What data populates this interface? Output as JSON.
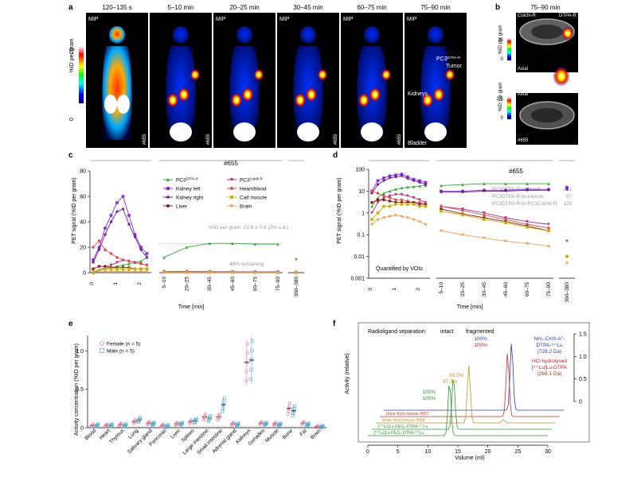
{
  "panels": {
    "a": {
      "letter": "a",
      "frames": [
        {
          "time": "120–135 s",
          "tag": "MIP",
          "id": "#655"
        },
        {
          "time": "5–10 min",
          "tag": "",
          "id": "#655"
        },
        {
          "time": "20–25 min",
          "tag": "MIP",
          "id": ""
        },
        {
          "time": "30–45 min",
          "tag": "MIP",
          "id": "#655"
        },
        {
          "time": "60–75 min",
          "tag": "MIP",
          "id": "#655"
        },
        {
          "time": "75–90 min",
          "tag": "MIP",
          "id": ""
        }
      ],
      "scale_label": "%ID per gram",
      "scale_max": "25",
      "scale_min": "0",
      "labels": {
        "tumor_line1": "PC3",
        "tumor_sup": "DTPA-R",
        "tumor_line2": "Tumor",
        "kidneys": "Kidneys",
        "bladder": "Bladder"
      }
    },
    "b": {
      "letter": "b",
      "time": "75–90 min",
      "left_label": "Colchi-R",
      "right_label": "DTPA-R",
      "scale_top": {
        "label": "%ID per gram",
        "max": "25",
        "min": "0"
      },
      "scale_bottom": {
        "label": "%ID per gram",
        "max": "2.5",
        "min": "0"
      },
      "axial": "Axial",
      "id": "#655"
    },
    "c": {
      "letter": "c",
      "id": "#655",
      "ylabel": "PET signal (%ID per gram)",
      "xlabel": "Time [min]",
      "annotation": "%ID per gram: 22.8 ± 0.6 (2% s.d.)",
      "remaining": "48% remaining",
      "yticks": [
        "0",
        "20",
        "40",
        "60",
        "80"
      ],
      "x_early_ticks": [
        "0",
        "1",
        "2"
      ],
      "x_late_ticks": [
        "5–10",
        "20–25",
        "30–45",
        "45–60",
        "60–75",
        "75–90"
      ],
      "x_end_tick": "360–380",
      "legend": [
        {
          "name": "PC3",
          "sup": "DTPA-R",
          "color": "#2eaa2e",
          "marker": "triangle"
        },
        {
          "name": "PC3",
          "sup": "Colchi-R",
          "color": "#b03080",
          "marker": "tri-down"
        },
        {
          "name": "Kidney left",
          "sup": "",
          "color": "#8a2be2",
          "marker": "square"
        },
        {
          "name": "Heart/blood",
          "sup": "",
          "color": "#e05050",
          "marker": "circle"
        },
        {
          "name": "Kidney right",
          "sup": "",
          "color": "#6a1b9a",
          "marker": "star"
        },
        {
          "name": "Calf muscle",
          "sup": "",
          "color": "#c8b400",
          "marker": "square"
        },
        {
          "name": "Liver",
          "sup": "",
          "color": "#8b1a1a",
          "marker": "circle"
        },
        {
          "name": "Brain",
          "sup": "",
          "color": "#f0a050",
          "marker": "star"
        }
      ]
    },
    "d": {
      "letter": "d",
      "id": "#655",
      "ylabel": "PET signal (%ID per gram)",
      "xlabel": "Time [min]",
      "note": "Quantified by VOIs",
      "ratios": [
        {
          "text": "PC3DTPA-R-to-blood:",
          "value": "261"
        },
        {
          "text": "PC3DTPA-R-to-muscle:",
          "value": "97"
        },
        {
          "text": "PC3DTPA-R-to-PC3Colchi-R:",
          "value": "125"
        }
      ],
      "yticks": [
        "0.001",
        "0.01",
        "0.1",
        "1",
        "10",
        "100"
      ],
      "x_early_ticks": [
        "0",
        "1",
        "2"
      ],
      "x_late_ticks": [
        "5–10",
        "20–25",
        "30–45",
        "45–60",
        "60–75",
        "75–90"
      ],
      "x_end_tick": "360–380"
    },
    "e": {
      "letter": "e",
      "ylabel": "Activity concentration (%ID per gram)",
      "yticks": [
        "0",
        "0.5",
        "1.0"
      ],
      "legend": [
        {
          "label": "Female (n = 5)",
          "color": "#e080a0",
          "marker": "circle"
        },
        {
          "label": "Male (n = 5)",
          "color": "#60b0d0",
          "marker": "square"
        }
      ],
      "categories": [
        "Blood",
        "Heart",
        "Thymus",
        "Lung",
        "Salivary gland",
        "Pancreas",
        "Liver",
        "Spleen",
        "Large intestine",
        "Small intestine",
        "Adrenal gland",
        "Kidneys",
        "Gonades",
        "Muscle",
        "Bone",
        "Fat",
        "Brain"
      ]
    },
    "f": {
      "letter": "f",
      "title": "Radioligand separation:",
      "intact": "intact",
      "fragmented": "fragmented",
      "ylabel": "Activity (relative)",
      "xlabel": "Volume (ml)",
      "xticks": [
        "0",
        "5",
        "10",
        "15",
        "20",
        "25",
        "30"
      ],
      "yticks": [
        "0",
        "0.5",
        "1.0",
        "1.5"
      ],
      "peak_labels": [
        {
          "text": "100%",
          "color": "#2a9a2a"
        },
        {
          "text": "100%",
          "color": "#2a9a2a"
        },
        {
          "text": "97.3%",
          "color": "#c89020"
        },
        {
          "text": "99.0%",
          "color": "#c89020"
        },
        {
          "text": "100%",
          "color": "#2a3ad0"
        },
        {
          "text": "100%",
          "color": "#c02020"
        }
      ],
      "compound_blue": [
        "NH₂-CHX-A″-",
        "DTPA-¹⁷⁷Lu",
        "(729.2 Da)"
      ],
      "compound_red": [
        "HCl hydrolysed",
        "[¹⁷⁷Lu]Lu-DTPA",
        "(269.1 Da)"
      ],
      "traces": [
        {
          "label": "Urine from mouse #657",
          "color": "#d0301a"
        },
        {
          "label": "Urine from mouse #664",
          "color": "#c89020"
        },
        {
          "label": "[¹⁷⁷Lu]Lu-PEG₄-DTPA-¹⁷⁷Lu",
          "color": "#2a9a2a"
        },
        {
          "label": "[¹⁷⁷Lu]Lu-PEG₄-DTPA-¹⁷⁷Lu",
          "color": "#2a9a2a"
        }
      ]
    }
  },
  "chart_data": [
    {
      "type": "line",
      "panel": "c",
      "x_early": [
        0,
        0.25,
        0.5,
        0.75,
        1,
        1.25,
        1.5,
        1.75,
        2,
        2.25
      ],
      "x_late": [
        "5–10",
        "20–25",
        "30–45",
        "45–60",
        "60–75",
        "75–90"
      ],
      "ylim": [
        0,
        80
      ],
      "series": [
        {
          "name": "PC3 DTPA-R",
          "color": "#2eaa2e",
          "early": [
            0,
            2,
            3,
            4,
            5,
            6,
            7,
            8,
            9,
            12
          ],
          "late": [
            12,
            20,
            23,
            23,
            22.5,
            22.5
          ],
          "end": 11
        },
        {
          "name": "PC3 Colchi-R",
          "color": "#b03080",
          "early": [
            0,
            2,
            4,
            6,
            8,
            10,
            9,
            8,
            7,
            6
          ],
          "late": [
            1,
            1,
            0.8,
            0.7,
            0.6,
            0.5
          ],
          "end": 0.2
        },
        {
          "name": "Kidney left",
          "color": "#8a2be2",
          "early": [
            10,
            20,
            35,
            45,
            55,
            60,
            45,
            30,
            20,
            15
          ],
          "late": [
            0.5,
            0.5,
            0.5,
            0.5,
            0.5,
            0.5
          ],
          "end": 0.3
        },
        {
          "name": "Kidney right",
          "color": "#6a1b9a",
          "early": [
            8,
            18,
            30,
            40,
            48,
            50,
            38,
            28,
            18,
            12
          ],
          "late": [
            0.5,
            0.5,
            0.5,
            0.5,
            0.5,
            0.5
          ],
          "end": 0.3
        },
        {
          "name": "Heart/blood",
          "color": "#e05050",
          "early": [
            20,
            25,
            18,
            15,
            12,
            10,
            9,
            8,
            7,
            6
          ],
          "late": [
            1,
            0.8,
            0.6,
            0.5,
            0.4,
            0.3
          ],
          "end": 0.1
        },
        {
          "name": "Liver",
          "color": "#8b1a1a",
          "early": [
            3,
            5,
            5,
            4,
            4,
            4,
            4,
            3,
            3,
            3
          ],
          "late": [
            0.5,
            0.4,
            0.3,
            0.3,
            0.2,
            0.2
          ],
          "end": 0.1
        },
        {
          "name": "Calf muscle",
          "color": "#c8b400",
          "early": [
            1,
            2,
            3,
            3,
            3,
            3,
            3,
            3,
            3,
            3
          ],
          "late": [
            0.5,
            0.4,
            0.3,
            0.3,
            0.2,
            0.2
          ],
          "end": 0.1
        },
        {
          "name": "Brain",
          "color": "#f0a050",
          "early": [
            0.5,
            1,
            1,
            1,
            1,
            1,
            1,
            1,
            1,
            1
          ],
          "late": [
            0.2,
            0.2,
            0.2,
            0.1,
            0.1,
            0.1
          ],
          "end": 0.05
        }
      ]
    },
    {
      "type": "line",
      "panel": "d",
      "yscale": "log",
      "ylim": [
        0.001,
        100
      ],
      "x_early": [
        0,
        0.25,
        0.5,
        0.75,
        1,
        1.25,
        1.5,
        1.75,
        2,
        2.25
      ],
      "x_late": [
        "5–10",
        "20–25",
        "30–45",
        "45–60",
        "60–75",
        "75–90"
      ],
      "series": [
        {
          "name": "PC3 DTPA-R",
          "color": "#2eaa2e",
          "early": [
            2,
            5,
            8,
            10,
            12,
            14,
            15,
            16,
            17,
            18
          ],
          "late": [
            18,
            20,
            22,
            22,
            22,
            22
          ],
          "end": 15
        },
        {
          "name": "Kidney left",
          "color": "#8a2be2",
          "early": [
            10,
            30,
            40,
            50,
            55,
            60,
            45,
            35,
            30,
            25
          ],
          "late": [
            10,
            10,
            11,
            11,
            12,
            12
          ],
          "end": 15
        },
        {
          "name": "Kidney right",
          "color": "#6a1b9a",
          "early": [
            8,
            20,
            30,
            40,
            45,
            50,
            38,
            30,
            25,
            20
          ],
          "late": [
            9,
            9,
            10,
            10,
            11,
            11
          ],
          "end": 12
        },
        {
          "name": "PC3 Colchi-R",
          "color": "#b03080",
          "early": [
            1,
            3,
            5,
            6,
            7,
            7,
            6,
            5,
            4,
            3
          ],
          "late": [
            2,
            1.5,
            1,
            0.6,
            0.4,
            0.3
          ],
          "end": 0.05
        },
        {
          "name": "Heart/blood",
          "color": "#e05050",
          "early": [
            10,
            8,
            6,
            5,
            4,
            4,
            3.5,
            3,
            3,
            2.5
          ],
          "late": [
            2,
            1.3,
            0.8,
            0.5,
            0.3,
            0.2
          ],
          "end": 0.01
        },
        {
          "name": "Liver",
          "color": "#8b1a1a",
          "early": [
            3,
            4,
            4,
            3.5,
            3,
            3,
            3,
            3,
            2.5,
            2.5
          ],
          "late": [
            1.5,
            0.9,
            0.6,
            0.4,
            0.25,
            0.15
          ],
          "end": 0.01
        },
        {
          "name": "Calf muscle",
          "color": "#c8b400",
          "early": [
            0.5,
            1,
            2,
            2,
            2.5,
            2.5,
            2.5,
            2.5,
            2,
            2
          ],
          "late": [
            1.2,
            0.8,
            0.5,
            0.35,
            0.22,
            0.15
          ],
          "end": 0.01
        },
        {
          "name": "Brain",
          "color": "#f0a050",
          "early": [
            0.3,
            0.5,
            0.6,
            0.7,
            0.8,
            0.7,
            0.6,
            0.5,
            0.4,
            0.3
          ],
          "late": [
            0.15,
            0.1,
            0.07,
            0.05,
            0.04,
            0.03
          ],
          "end": 0.005
        }
      ]
    },
    {
      "type": "scatter",
      "panel": "e",
      "ylim": [
        0,
        1.2
      ],
      "categories": [
        "Blood",
        "Heart",
        "Thymus",
        "Lung",
        "Salivary gland",
        "Pancreas",
        "Liver",
        "Spleen",
        "Large intestine",
        "Small intestine",
        "Adrenal gland",
        "Kidneys",
        "Gonades",
        "Muscle",
        "Bone",
        "Fat",
        "Brain"
      ],
      "series": [
        {
          "name": "Female (n = 5)",
          "color": "#e080a0",
          "means": [
            0.03,
            0.03,
            0.04,
            0.08,
            0.06,
            0.03,
            0.05,
            0.08,
            0.14,
            0.14,
            0.05,
            0.85,
            0.06,
            0.05,
            0.25,
            0.06,
            0.01
          ]
        },
        {
          "name": "Male (n = 5)",
          "color": "#60b0d0",
          "means": [
            0.03,
            0.03,
            0.03,
            0.1,
            0.05,
            0.02,
            0.05,
            0.09,
            0.12,
            0.3,
            0.04,
            0.88,
            0.05,
            0.04,
            0.22,
            0.04,
            0.01
          ]
        }
      ]
    },
    {
      "type": "line",
      "panel": "f",
      "xlim": [
        0,
        30
      ],
      "ylim": [
        0,
        1.5
      ],
      "series": [
        {
          "name": "Urine from mouse #657",
          "color": "#d0301a",
          "peaks": [
            21.3
          ],
          "height": [
            0.95
          ]
        },
        {
          "name": "Urine from mouse #664",
          "color": "#c89020",
          "peaks": [
            15.5,
            21.3
          ],
          "height": [
            0.85,
            0.05
          ]
        },
        {
          "name": "[177Lu]Lu-PEG4-DTPA-177Lu a",
          "color": "#2a9a2a",
          "peaks": [
            13.6
          ],
          "height": [
            0.8
          ]
        },
        {
          "name": "[177Lu]Lu-PEG4-DTPA-177Lu b",
          "color": "#2a9a2a",
          "peaks": [
            13.6
          ],
          "height": [
            0.8
          ]
        },
        {
          "name": "NH2-CHX-A''-DTPA-177Lu",
          "color": "#2a3ad0",
          "peaks": [
            21.3
          ],
          "height": [
            1.0
          ]
        }
      ]
    }
  ]
}
